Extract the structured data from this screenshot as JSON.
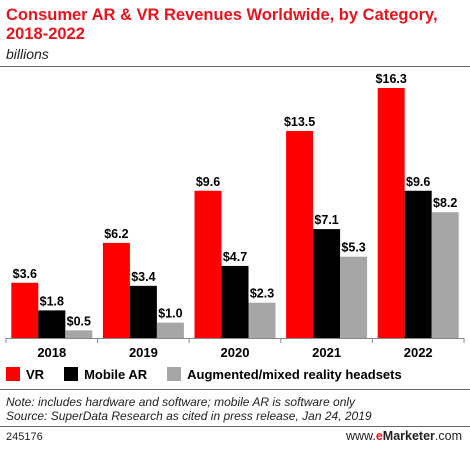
{
  "header": {
    "title": "Consumer AR & VR Revenues Worldwide, by Category, 2018-2022",
    "subtitle": "billions"
  },
  "legend": {
    "items": [
      {
        "label": "VR",
        "color": "#ff0000"
      },
      {
        "label": "Mobile AR",
        "color": "#000000"
      },
      {
        "label": "Augmented/mixed reality headsets",
        "color": "#a6a6a6"
      }
    ]
  },
  "notes": {
    "line1": "Note: includes hardware and software; mobile AR is software only",
    "line2": "Source: SuperData Research as cited in press release, Jan 24, 2019"
  },
  "footer": {
    "id": "245176",
    "brand_prefix": "www.",
    "brand_e": "e",
    "brand_rest": "Marketer",
    "brand_suffix": ".com"
  },
  "chart_data": {
    "type": "bar",
    "title": "Consumer AR & VR Revenues Worldwide, by Category, 2018-2022",
    "subtitle": "billions",
    "categories": [
      "2018",
      "2019",
      "2020",
      "2021",
      "2022"
    ],
    "series": [
      {
        "name": "VR",
        "color": "#ff0000",
        "values": [
          3.6,
          6.2,
          9.6,
          13.5,
          16.3
        ],
        "labels": [
          "$3.6",
          "$6.2",
          "$9.6",
          "$13.5",
          "$16.3"
        ]
      },
      {
        "name": "Mobile AR",
        "color": "#000000",
        "values": [
          1.8,
          3.4,
          4.7,
          7.1,
          9.6
        ],
        "labels": [
          "$1.8",
          "$3.4",
          "$4.7",
          "$7.1",
          "$9.6"
        ]
      },
      {
        "name": "Augmented/mixed reality headsets",
        "color": "#a6a6a6",
        "values": [
          0.5,
          1.0,
          2.3,
          5.3,
          8.2
        ],
        "labels": [
          "$0.5",
          "$1.0",
          "$2.3",
          "$5.3",
          "$8.2"
        ]
      }
    ],
    "xlabel": "",
    "ylabel": "",
    "ylim": [
      0,
      16.3
    ],
    "grid": false,
    "legend_position": "bottom"
  }
}
